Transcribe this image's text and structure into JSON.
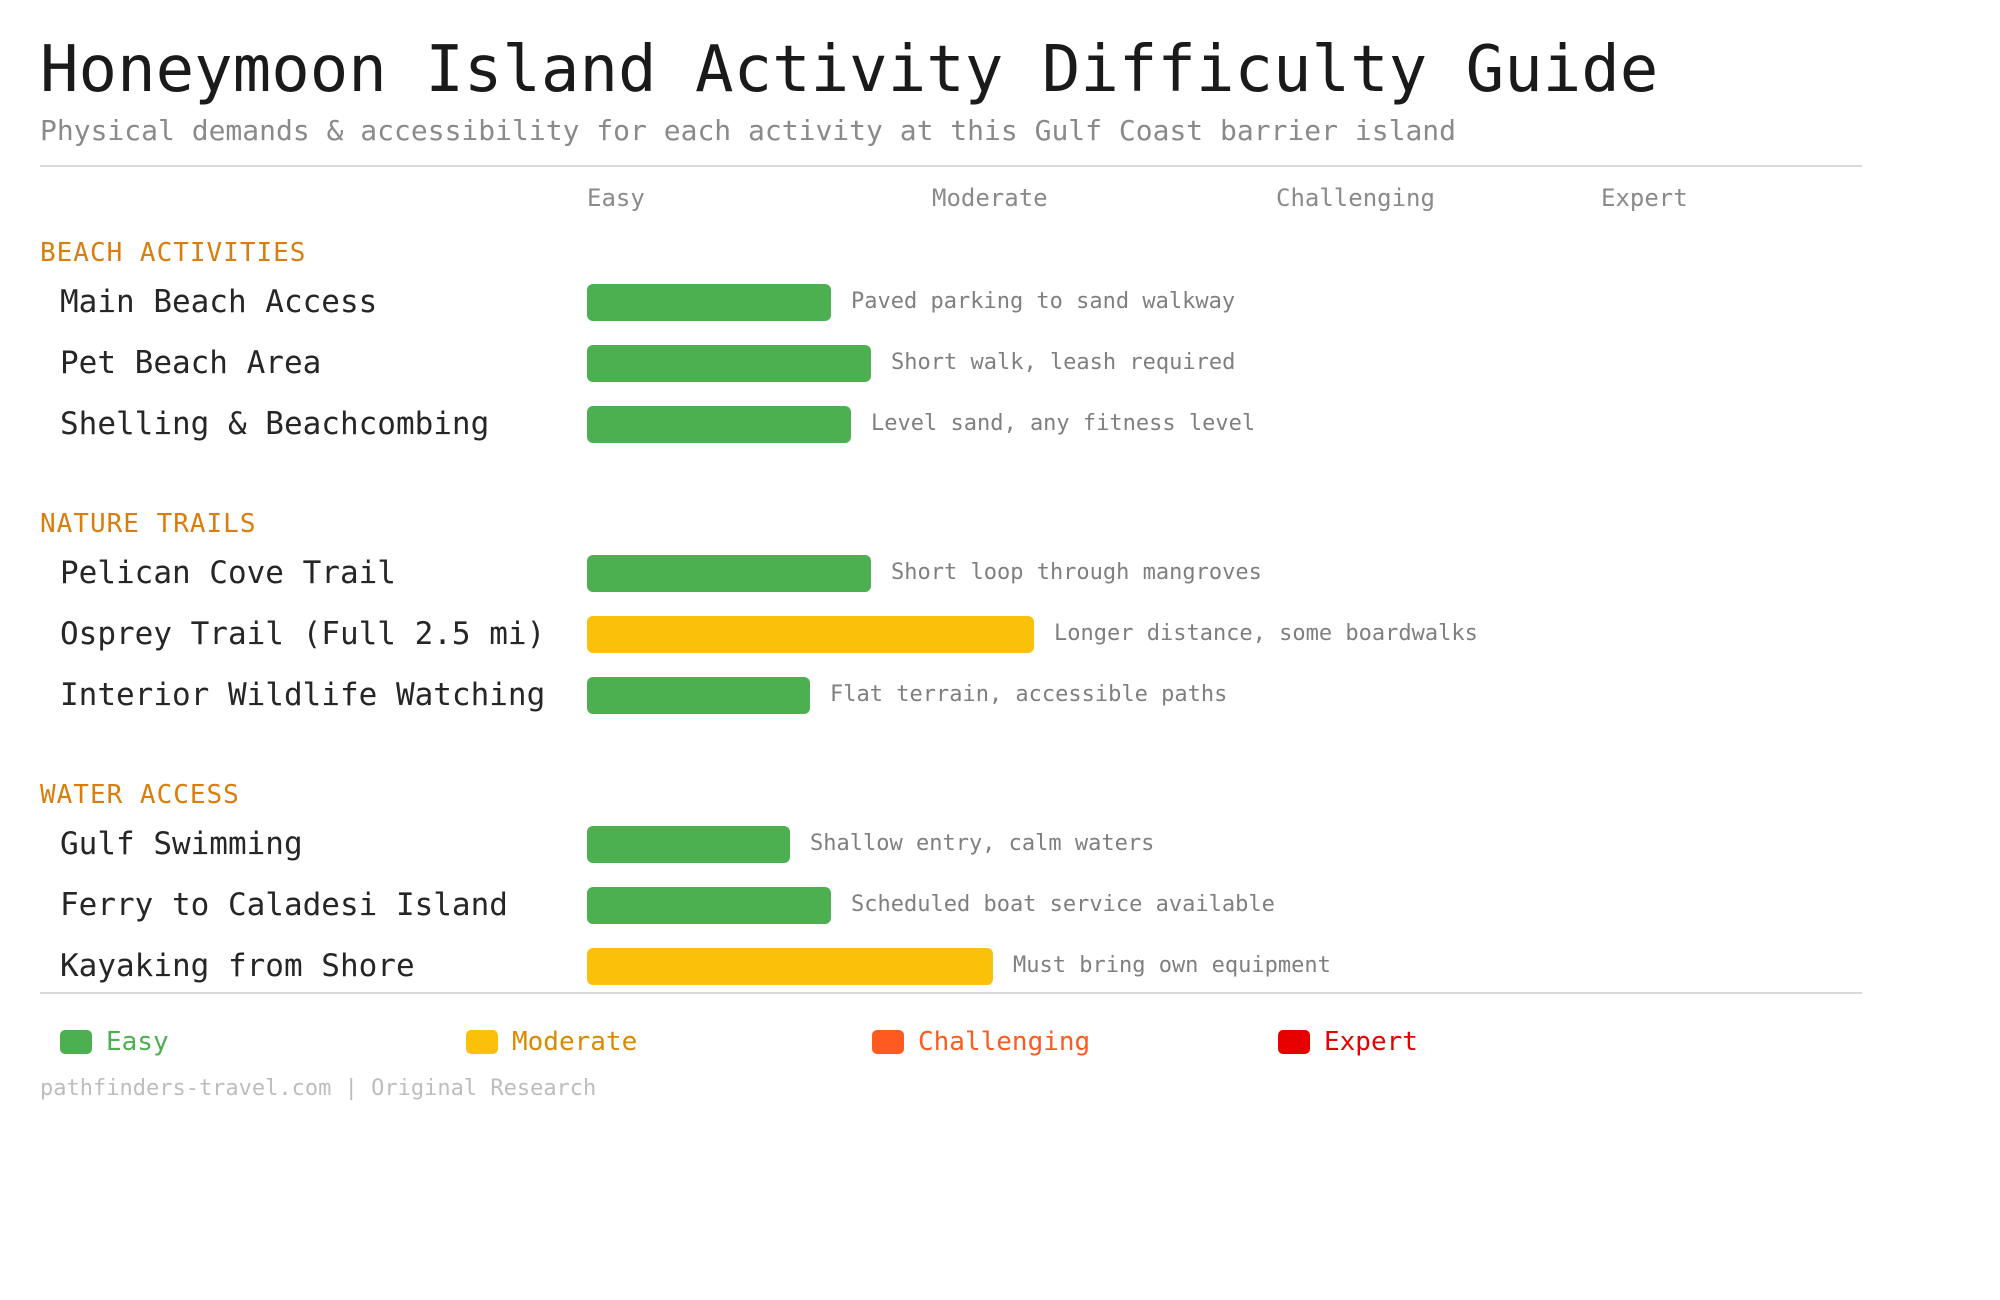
{
  "header": {
    "title": "Honeymoon Island Activity Difficulty Guide",
    "subtitle": "Physical demands & accessibility for each activity at this Gulf Coast barrier island"
  },
  "levels": [
    {
      "label": "Easy",
      "color": "#4caf50"
    },
    {
      "label": "Moderate",
      "color": "#fbc10a"
    },
    {
      "label": "Challenging",
      "color": "#ff5a1f"
    },
    {
      "label": "Expert",
      "color": "#e60000"
    }
  ],
  "legend_text_colors": [
    "#4caf50",
    "#d98a00",
    "#ff5a1f",
    "#e60000"
  ],
  "chart_data": {
    "type": "bar",
    "orientation": "horizontal",
    "title": "Honeymoon Island Activity Difficulty Guide",
    "subtitle": "Physical demands & accessibility for each activity at this Gulf Coast barrier island",
    "scale_labels": [
      "Easy",
      "Moderate",
      "Challenging",
      "Expert"
    ],
    "xlim": [
      0,
      4
    ],
    "grid": false,
    "legend": "bottom",
    "sections": [
      {
        "name": "BEACH ACTIVITIES",
        "items": [
          {
            "label": "Main Beach Access",
            "value": 0.75,
            "level": "Easy",
            "note": "Paved parking to sand walkway"
          },
          {
            "label": "Pet Beach Area",
            "value": 0.875,
            "level": "Easy",
            "note": "Short walk, leash required"
          },
          {
            "label": "Shelling & Beachcombing",
            "value": 0.8125,
            "level": "Easy",
            "note": "Level sand, any fitness level"
          }
        ]
      },
      {
        "name": "NATURE TRAILS",
        "items": [
          {
            "label": "Pelican Cove Trail",
            "value": 0.875,
            "level": "Easy",
            "note": "Short loop through mangroves"
          },
          {
            "label": "Osprey Trail (Full 2.5 mi)",
            "value": 1.375,
            "level": "Moderate",
            "note": "Longer distance, some boardwalks"
          },
          {
            "label": "Interior Wildlife Watching",
            "value": 0.6875,
            "level": "Easy",
            "note": "Flat terrain, accessible paths"
          }
        ]
      },
      {
        "name": "WATER ACCESS",
        "items": [
          {
            "label": "Gulf Swimming",
            "value": 0.625,
            "level": "Easy",
            "note": "Shallow entry, calm waters"
          },
          {
            "label": "Ferry to Caladesi Island",
            "value": 0.75,
            "level": "Easy",
            "note": "Scheduled boat service available"
          },
          {
            "label": "Kayaking from Shore",
            "value": 1.25,
            "level": "Moderate",
            "note": "Must bring own equipment"
          }
        ]
      }
    ]
  },
  "footer": "pathfinders-travel.com | Original Research"
}
